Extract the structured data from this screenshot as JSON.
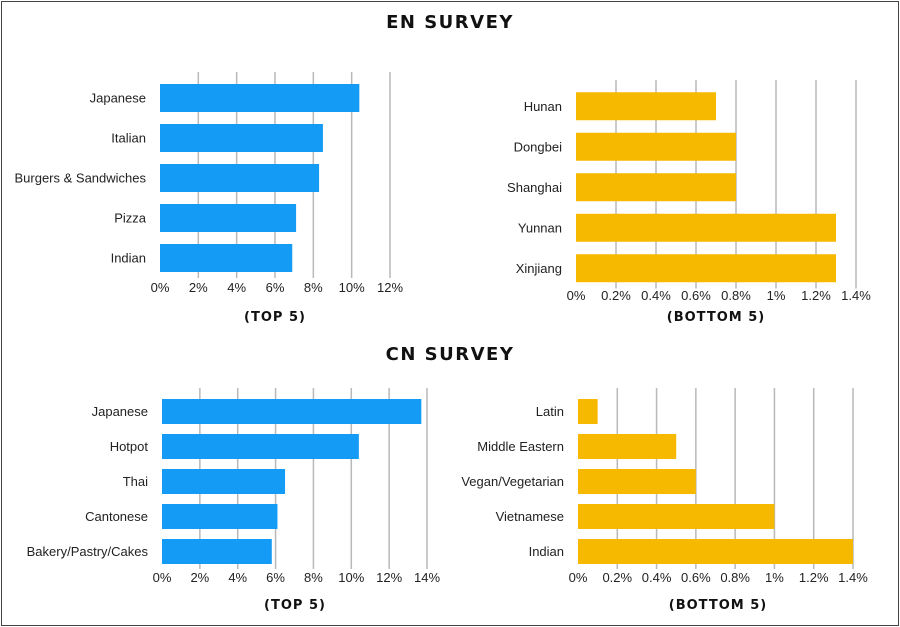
{
  "sections": {
    "en_title": "EN SURVEY",
    "cn_title": "CN SURVEY"
  },
  "colors": {
    "top": "#149BF5",
    "bottom": "#F7B900",
    "grid": "#b9b9b9"
  },
  "chart_data": [
    {
      "type": "bar",
      "orientation": "horizontal",
      "survey": "EN",
      "caption": "(TOP 5)",
      "categories": [
        "Japanese",
        "Italian",
        "Burgers & Sandwiches",
        "Pizza",
        "Indian"
      ],
      "values": [
        10.4,
        8.5,
        8.3,
        7.1,
        6.9
      ],
      "xlim": [
        0,
        12
      ],
      "ticks": [
        0,
        2,
        4,
        6,
        8,
        10,
        12
      ],
      "tick_labels": [
        "0%",
        "2%",
        "4%",
        "6%",
        "8%",
        "10%",
        "12%"
      ],
      "color": "#149BF5",
      "grid": true
    },
    {
      "type": "bar",
      "orientation": "horizontal",
      "survey": "EN",
      "caption": "(BOTTOM 5)",
      "categories": [
        "Hunan",
        "Dongbei",
        "Shanghai",
        "Yunnan",
        "Xinjiang"
      ],
      "values": [
        0.7,
        0.8,
        0.8,
        1.3,
        1.3
      ],
      "xlim": [
        0,
        1.4
      ],
      "ticks": [
        0,
        0.2,
        0.4,
        0.6,
        0.8,
        1.0,
        1.2,
        1.4
      ],
      "tick_labels": [
        "0%",
        "0.2%",
        "0.4%",
        "0.6%",
        "0.8%",
        "1%",
        "1.2%",
        "1.4%"
      ],
      "color": "#F7B900",
      "grid": true
    },
    {
      "type": "bar",
      "orientation": "horizontal",
      "survey": "CN",
      "caption": "(TOP 5)",
      "categories": [
        "Japanese",
        "Hotpot",
        "Thai",
        "Cantonese",
        "Bakery/Pastry/Cakes"
      ],
      "values": [
        13.7,
        10.4,
        6.5,
        6.1,
        5.8
      ],
      "xlim": [
        0,
        14
      ],
      "ticks": [
        0,
        2,
        4,
        6,
        8,
        10,
        12,
        14
      ],
      "tick_labels": [
        "0%",
        "2%",
        "4%",
        "6%",
        "8%",
        "10%",
        "12%",
        "14%"
      ],
      "color": "#149BF5",
      "grid": true
    },
    {
      "type": "bar",
      "orientation": "horizontal",
      "survey": "CN",
      "caption": "(BOTTOM 5)",
      "categories": [
        "Latin",
        "Middle Eastern",
        "Vegan/Vegetarian",
        "Vietnamese",
        "Indian"
      ],
      "values": [
        0.1,
        0.5,
        0.6,
        1.0,
        1.4
      ],
      "xlim": [
        0,
        1.4
      ],
      "ticks": [
        0,
        0.2,
        0.4,
        0.6,
        0.8,
        1.0,
        1.2,
        1.4
      ],
      "tick_labels": [
        "0%",
        "0.2%",
        "0.4%",
        "0.6%",
        "0.8%",
        "1%",
        "1.2%",
        "1.4%"
      ],
      "color": "#F7B900",
      "grid": true
    }
  ]
}
